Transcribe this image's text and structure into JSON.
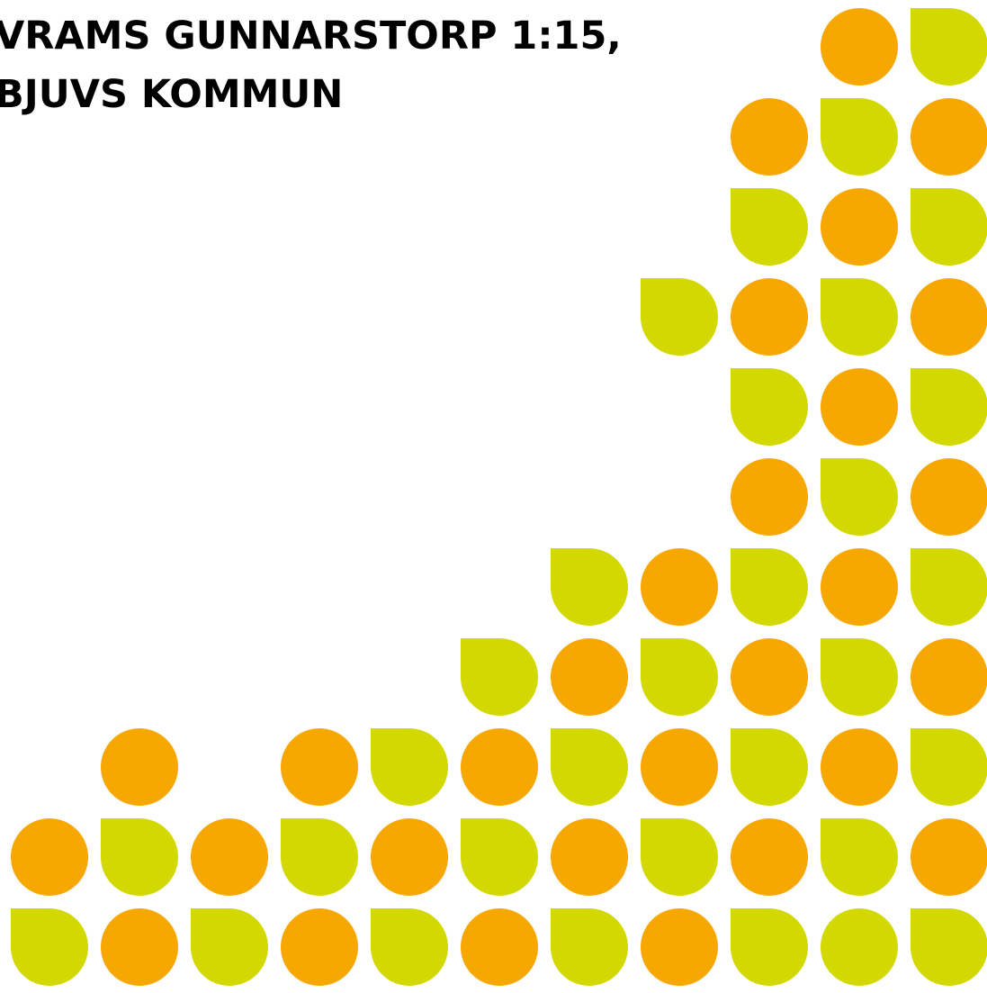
{
  "header": {
    "title_lines": [
      "VRAMS GUNNARSTORP 1:15,",
      "BJUVS KOMMUN"
    ]
  }
}
